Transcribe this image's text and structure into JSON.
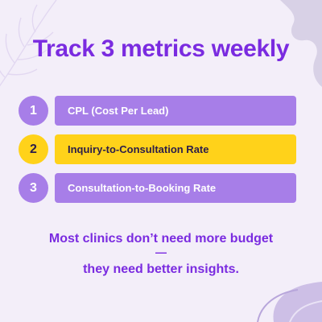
{
  "headline": "Track 3 metrics weekly",
  "metrics": [
    {
      "number": "1",
      "label": "CPL (Cost Per Lead)",
      "style": "purple"
    },
    {
      "number": "2",
      "label": "Inquiry-to-Consultation Rate",
      "style": "yellow"
    },
    {
      "number": "3",
      "label": "Consultation-to-Booking Rate",
      "style": "purple"
    }
  ],
  "tagline": {
    "line1": "Most clinics don’t need more budget",
    "dash": "—",
    "line2": "they need better insights."
  },
  "colors": {
    "background": "#f3eef9",
    "accent_purple": "#7a2be0",
    "metric_purple": "#a77ee8",
    "metric_yellow": "#ffd21a"
  },
  "decorations": [
    "leaf-icon",
    "abstract-wave-shape",
    "leaf-icon"
  ]
}
